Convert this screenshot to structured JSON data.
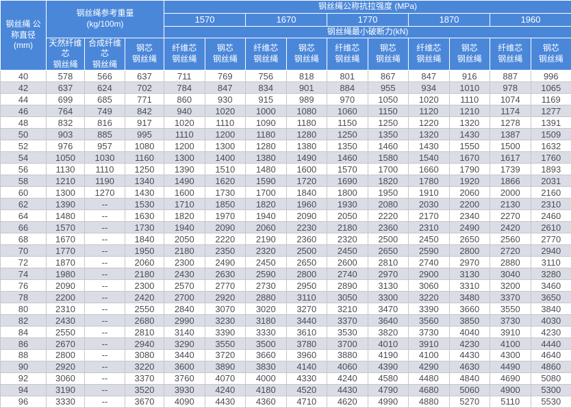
{
  "chart_data": {
    "type": "table",
    "header": {
      "diameter_label": "钢丝绳 公\n称直径\n(mm)",
      "weight_title": "钢丝绳参考重量\n(kg/100m)",
      "weight_subheaders": [
        "天然纤维\n芯\n钢丝绳",
        "合成纤维\n芯\n钢丝绳",
        "钢芯\n钢丝绳"
      ],
      "strength_title": "钢丝绳公称抗拉强度 (MPa)",
      "strength_values": [
        "1570",
        "1670",
        "1770",
        "1870",
        "1960"
      ],
      "breaking_force_title": "钢丝绳最小破断力(kN)",
      "strength_subheaders": [
        "纤维芯\n钢丝绳",
        "钢芯\n钢丝绳",
        "纤维芯\n钢丝绳",
        "钢芯\n钢丝绳",
        "纤维芯\n钢丝绳",
        "钢芯\n钢丝绳",
        "纤维芯\n钢丝绳",
        "钢芯\n钢丝绳",
        "纤维芯\n钢丝绳",
        "钢芯\n钢丝绳"
      ]
    },
    "rows": [
      [
        40,
        578,
        566,
        637,
        711,
        769,
        756,
        818,
        801,
        867,
        847,
        916,
        887,
        996
      ],
      [
        42,
        637,
        624,
        702,
        784,
        847,
        834,
        901,
        884,
        955,
        934,
        1010,
        978,
        1065
      ],
      [
        44,
        699,
        685,
        771,
        860,
        930,
        915,
        989,
        970,
        1050,
        1020,
        1110,
        1074,
        1169
      ],
      [
        46,
        764,
        749,
        842,
        940,
        1020,
        1000,
        1080,
        1060,
        1150,
        1120,
        1210,
        1174,
        1277
      ],
      [
        48,
        832,
        816,
        917,
        1020,
        1110,
        1090,
        1180,
        1150,
        1250,
        1220,
        1320,
        1278,
        1391
      ],
      [
        50,
        903,
        885,
        995,
        1110,
        1200,
        1180,
        1280,
        1250,
        1350,
        1320,
        1430,
        1387,
        1509
      ],
      [
        52,
        976,
        957,
        1080,
        1200,
        1300,
        1280,
        1380,
        1350,
        1460,
        1430,
        1550,
        1500,
        1632
      ],
      [
        54,
        1050,
        1030,
        1160,
        1300,
        1400,
        1380,
        1490,
        1460,
        1580,
        1540,
        1670,
        1617,
        1760
      ],
      [
        56,
        1130,
        1110,
        1250,
        1390,
        1510,
        1480,
        1600,
        1570,
        1700,
        1660,
        1790,
        1739,
        1893
      ],
      [
        58,
        1210,
        1190,
        1340,
        1490,
        1620,
        1590,
        1720,
        1690,
        1820,
        1780,
        1920,
        1866,
        2031
      ],
      [
        60,
        1300,
        1270,
        1430,
        1600,
        1730,
        1700,
        1840,
        1800,
        1950,
        1910,
        2060,
        2000,
        2160
      ],
      [
        62,
        1390,
        "--",
        1530,
        1710,
        1850,
        1820,
        1960,
        1930,
        2080,
        2030,
        2200,
        2130,
        2310
      ],
      [
        64,
        1480,
        "--",
        1630,
        1820,
        1970,
        1940,
        2090,
        2050,
        2220,
        2170,
        2340,
        2270,
        2460
      ],
      [
        66,
        1570,
        "--",
        1730,
        1940,
        2090,
        2060,
        2230,
        2180,
        2360,
        2310,
        2490,
        2420,
        2610
      ],
      [
        68,
        1670,
        "--",
        1840,
        2050,
        2220,
        2190,
        2360,
        2320,
        2500,
        2450,
        2650,
        2560,
        2770
      ],
      [
        70,
        1770,
        "--",
        1950,
        2180,
        2350,
        2320,
        2500,
        2450,
        2650,
        2590,
        2800,
        2720,
        2940
      ],
      [
        72,
        1870,
        "--",
        2060,
        2300,
        2490,
        2450,
        2650,
        2600,
        2810,
        2740,
        2970,
        2880,
        3110
      ],
      [
        74,
        1980,
        "--",
        2180,
        2430,
        2630,
        2590,
        2800,
        2740,
        2970,
        2900,
        3130,
        3040,
        3280
      ],
      [
        76,
        2090,
        "--",
        2300,
        2570,
        2770,
        2730,
        2950,
        2890,
        3130,
        3060,
        3310,
        3200,
        3460
      ],
      [
        78,
        2200,
        "--",
        2420,
        2700,
        2920,
        2880,
        3110,
        3050,
        3300,
        3220,
        3480,
        3370,
        3650
      ],
      [
        80,
        2310,
        "--",
        2550,
        2840,
        3070,
        3020,
        3270,
        3210,
        3470,
        3390,
        3660,
        3550,
        3840
      ],
      [
        82,
        2430,
        "--",
        2680,
        2990,
        3230,
        3180,
        3440,
        3370,
        3640,
        3560,
        3850,
        3730,
        4030
      ],
      [
        84,
        2550,
        "--",
        2810,
        3140,
        3390,
        3330,
        3610,
        3530,
        3820,
        3730,
        4040,
        3910,
        4230
      ],
      [
        86,
        2670,
        "--",
        2940,
        3290,
        3550,
        3500,
        3780,
        3700,
        4010,
        3910,
        4230,
        4100,
        4440
      ],
      [
        88,
        2800,
        "--",
        3080,
        3440,
        3720,
        3660,
        3960,
        3880,
        4190,
        4100,
        4430,
        4300,
        4640
      ],
      [
        90,
        2920,
        "--",
        3220,
        3600,
        3890,
        3830,
        4140,
        4060,
        4390,
        4290,
        4630,
        4490,
        4860
      ],
      [
        92,
        3060,
        "--",
        3370,
        3760,
        4070,
        4000,
        4330,
        4240,
        4580,
        4480,
        4840,
        4690,
        5080
      ],
      [
        94,
        3190,
        "--",
        3520,
        3930,
        4240,
        4180,
        4520,
        4430,
        4790,
        4680,
        5060,
        4900,
        5300
      ],
      [
        96,
        3330,
        "--",
        3670,
        4090,
        4430,
        4360,
        4710,
        4620,
        4990,
        4880,
        5270,
        5110,
        5530
      ]
    ]
  },
  "colors": {
    "header_bg": "#4a87d9",
    "header_text": "#ffffff",
    "header_border": "#ffffff",
    "row_bg": "#ffffff",
    "row_alt_bg": "#dadde6",
    "body_border": "#c6c6c6",
    "body_text": "#4b4b53"
  }
}
